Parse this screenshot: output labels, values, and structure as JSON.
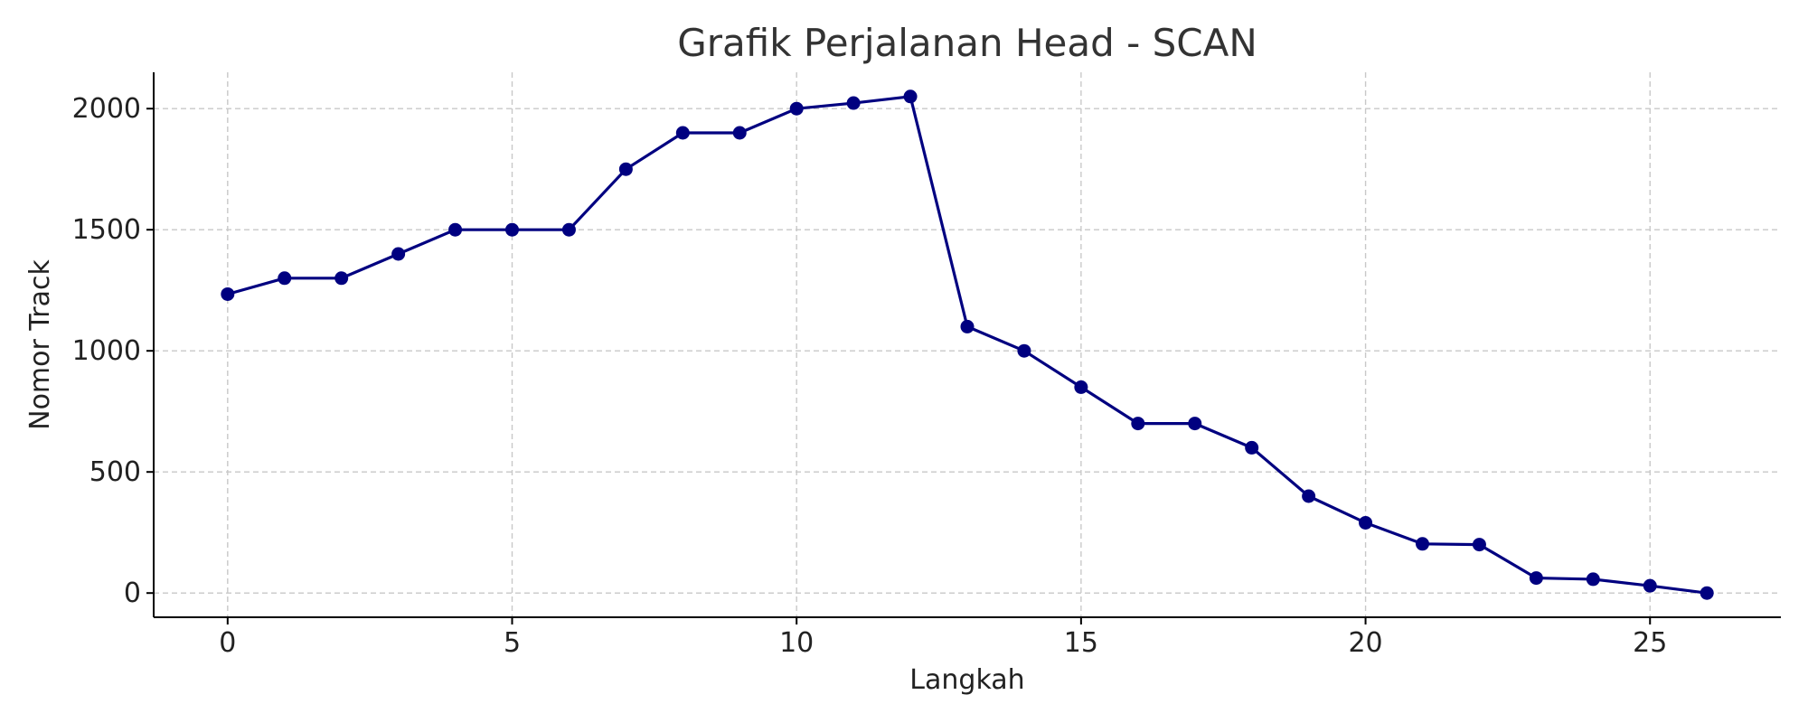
{
  "chart_data": {
    "type": "line",
    "title": "Grafik Perjalanan Head - SCAN",
    "xlabel": "Langkah",
    "ylabel": "Nomor Track",
    "xlim": [
      -1.3,
      27.3
    ],
    "ylim": [
      -100,
      2150
    ],
    "xticks": [
      0,
      5,
      10,
      15,
      20,
      25
    ],
    "yticks": [
      0,
      500,
      1000,
      1500,
      2000
    ],
    "grid": true,
    "grid_style": "dashed",
    "series": [
      {
        "color": "#000080",
        "marker": "circle",
        "x": [
          0,
          1,
          2,
          3,
          4,
          5,
          6,
          7,
          8,
          9,
          10,
          11,
          12,
          13,
          14,
          15,
          16,
          17,
          18,
          19,
          20,
          21,
          22,
          23,
          24,
          25,
          26
        ],
        "y": [
          1234,
          1300,
          1300,
          1400,
          1500,
          1500,
          1500,
          1750,
          1900,
          1900,
          2000,
          2023,
          2050,
          1100,
          1000,
          850,
          700,
          700,
          600,
          400,
          290,
          203,
          200,
          62,
          57,
          30,
          0
        ]
      }
    ]
  }
}
